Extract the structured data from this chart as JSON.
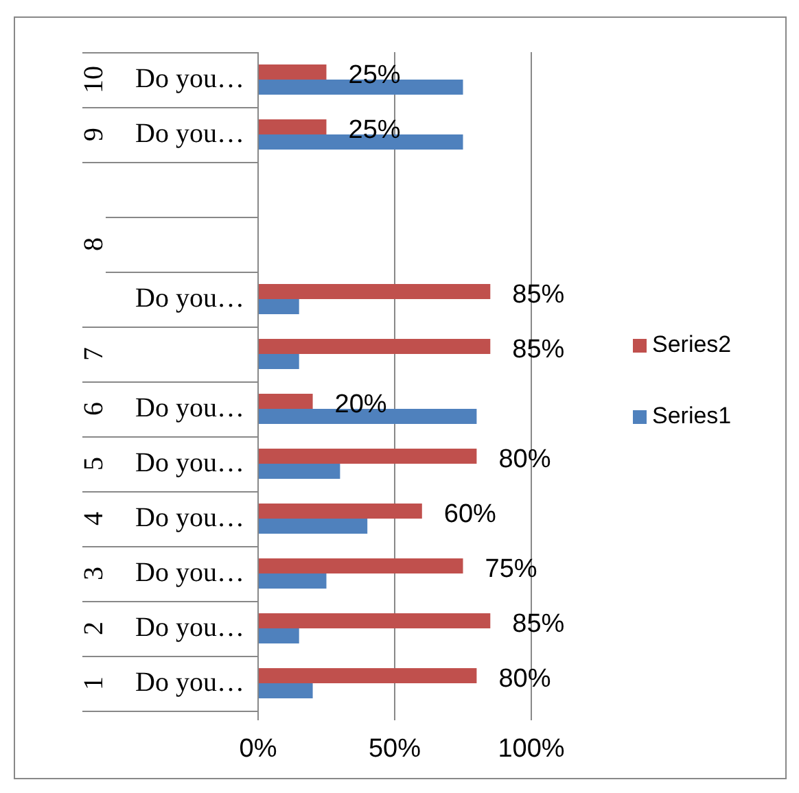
{
  "chart_data": {
    "type": "bar",
    "orientation": "horizontal",
    "categories": [
      "Do you…",
      "Do you…",
      null,
      null,
      "Do you…",
      null,
      "Do you…",
      "Do you…",
      "Do you…",
      "Do you…",
      "Do you…",
      "Do you…"
    ],
    "series": [
      {
        "name": "Series2",
        "color": "#c0504d",
        "values": [
          25,
          25,
          null,
          null,
          85,
          85,
          20,
          80,
          60,
          75,
          85,
          80
        ],
        "value_labels": [
          "25%",
          "25%",
          null,
          null,
          "85%",
          "85%",
          "20%",
          "80%",
          "60%",
          "75%",
          "85%",
          "80%"
        ]
      },
      {
        "name": "Series1",
        "color": "#4f81bd",
        "values": [
          75,
          75,
          null,
          null,
          15,
          15,
          80,
          30,
          40,
          25,
          15,
          20
        ]
      }
    ],
    "annotations": [
      "10",
      "9",
      "8",
      "7",
      "6",
      "5",
      "4",
      "3",
      "2",
      "1"
    ],
    "xlim": [
      0,
      100
    ],
    "xticks": [
      {
        "value": 0,
        "label": "0%"
      },
      {
        "value": 50,
        "label": "50%"
      },
      {
        "value": 100,
        "label": "100%"
      }
    ],
    "grid": "x",
    "legend": "right"
  }
}
